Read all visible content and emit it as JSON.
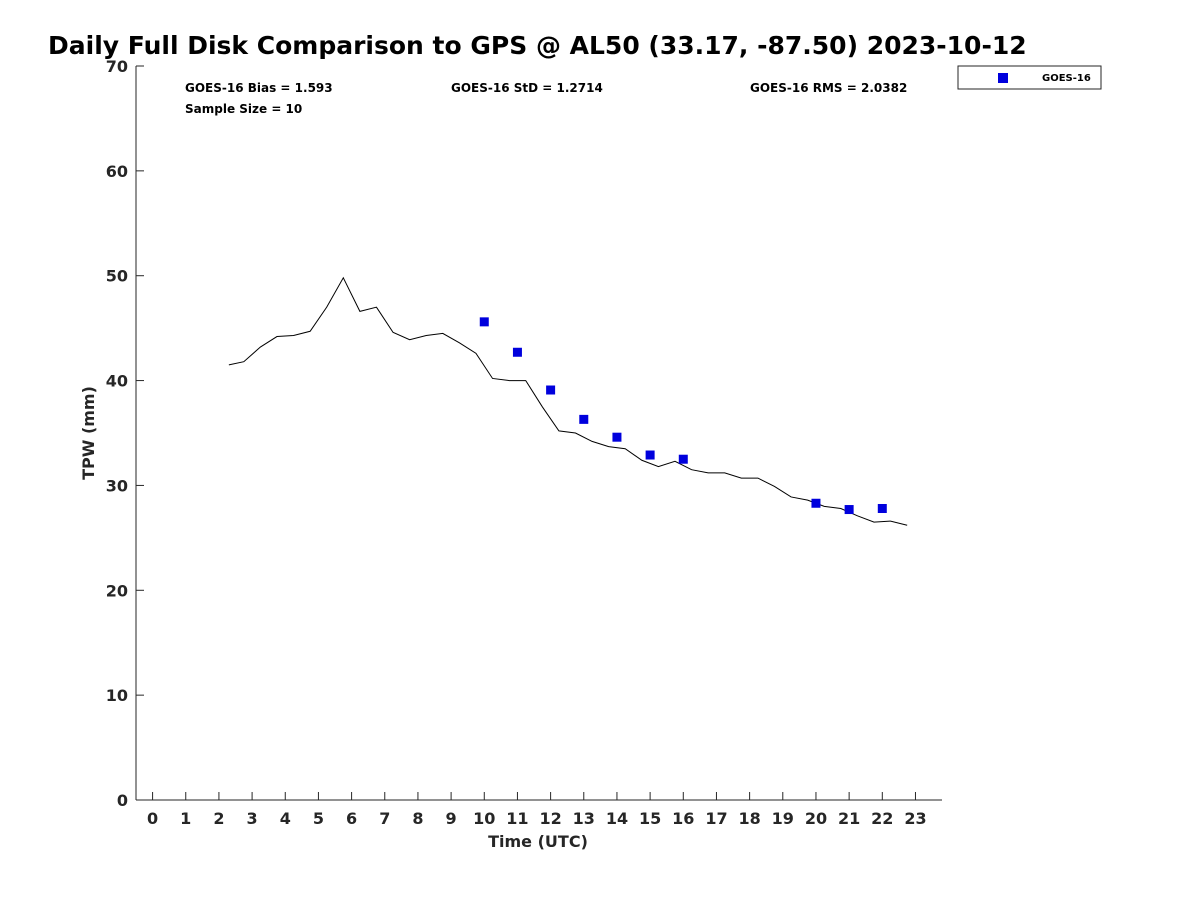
{
  "chart_data": {
    "type": "scatter",
    "title": "Daily Full Disk Comparison to GPS @ AL50 (33.17, -87.50) 2023-10-12",
    "xlabel": "Time (UTC)",
    "ylabel": "TPW (mm)",
    "xlim": [
      -0.5,
      23.8
    ],
    "ylim": [
      0,
      70
    ],
    "xticks": [
      "0",
      "1",
      "2",
      "3",
      "4",
      "5",
      "6",
      "7",
      "8",
      "9",
      "10",
      "11",
      "12",
      "13",
      "14",
      "15",
      "16",
      "17",
      "18",
      "19",
      "20",
      "21",
      "22",
      "23"
    ],
    "yticks": [
      "0",
      "10",
      "20",
      "30",
      "40",
      "50",
      "60",
      "70"
    ],
    "grid": false,
    "legend_position": "top-right-outside",
    "stats": {
      "bias": "GOES-16 Bias = 1.593",
      "std": "GOES-16 StD = 1.2714",
      "rms": "GOES-16 RMS = 2.0382",
      "sample": "Sample Size = 10"
    },
    "series": [
      {
        "kind": "line",
        "color": "#000000",
        "x": [
          2.3,
          2.75,
          3.25,
          3.75,
          4.25,
          4.75,
          5.25,
          5.75,
          6.25,
          6.75,
          7.25,
          7.75,
          8.25,
          8.75,
          9.25,
          9.75,
          10.25,
          10.75,
          11.25,
          11.75,
          12.25,
          12.75,
          13.25,
          13.75,
          14.25,
          14.75,
          15.25,
          15.75,
          16.25,
          16.75,
          17.25,
          17.75,
          18.25,
          18.75,
          19.25,
          19.75,
          20.25,
          20.75,
          21.25,
          21.75,
          22.25,
          22.75
        ],
        "y": [
          41.5,
          41.8,
          43.2,
          44.2,
          44.3,
          44.7,
          47.0,
          49.8,
          46.6,
          47.0,
          44.6,
          43.9,
          44.3,
          44.5,
          43.6,
          42.6,
          40.2,
          40.0,
          40.0,
          37.5,
          35.2,
          35.0,
          34.2,
          33.7,
          33.5,
          32.4,
          31.8,
          32.3,
          31.5,
          31.2,
          31.2,
          30.7,
          30.7,
          29.9,
          28.9,
          28.6,
          28.0,
          27.8,
          27.1,
          26.5,
          26.6,
          26.2
        ]
      },
      {
        "name": "GOES-16",
        "kind": "scatter",
        "color": "#0000dd",
        "marker": "square",
        "x": [
          10,
          11,
          12,
          13,
          14,
          15,
          16,
          20,
          21,
          22
        ],
        "y": [
          45.6,
          42.7,
          39.1,
          36.3,
          34.6,
          32.9,
          32.5,
          28.3,
          27.7,
          27.8
        ]
      }
    ]
  }
}
